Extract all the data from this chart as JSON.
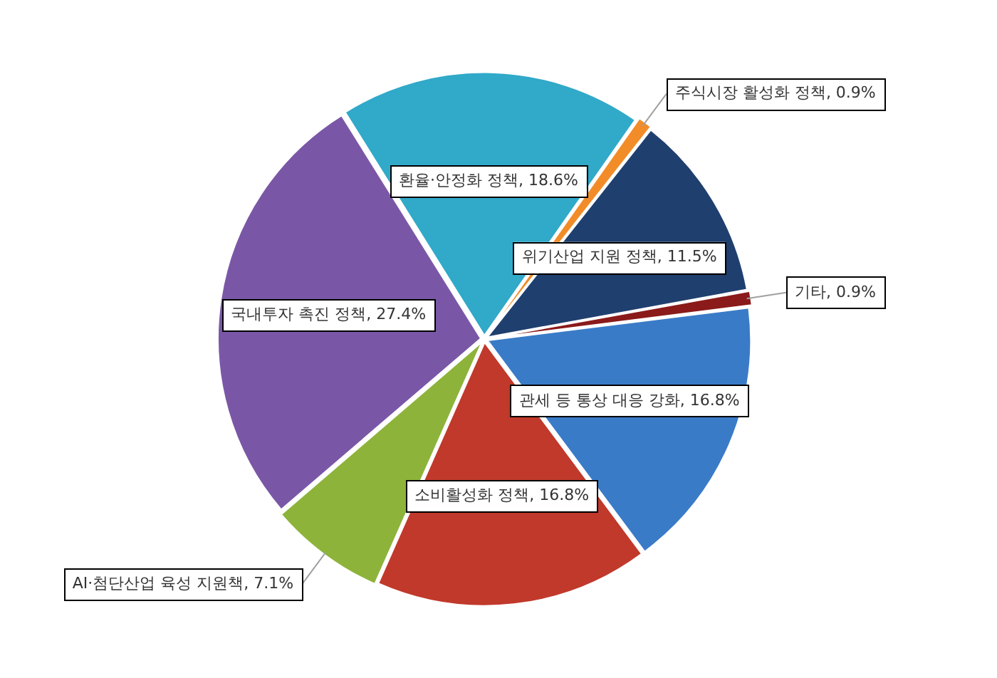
{
  "chart_data": {
    "type": "pie",
    "categories": [
      "주식시장 활성화 정책",
      "위기산업 지원 정책",
      "기타",
      "관세 등 통상 대응 강화",
      "소비활성화 정책",
      "AI·첨단산업 육성 지원책",
      "국내투자 촉진 정책",
      "환율·안정화 정책"
    ],
    "values": [
      0.9,
      11.5,
      0.9,
      16.8,
      16.8,
      7.1,
      27.4,
      18.6
    ],
    "colors": [
      "#f28c28",
      "#1f3f6e",
      "#8b1a1a",
      "#3a7bc8",
      "#c0392b",
      "#8db33a",
      "#7a57a6",
      "#31a9c9"
    ],
    "value_labels": [
      "0.9%",
      "11.5%",
      "0.9%",
      "16.8%",
      "16.8%",
      "7.1%",
      "27.4%",
      "18.6%"
    ],
    "legend": false
  }
}
